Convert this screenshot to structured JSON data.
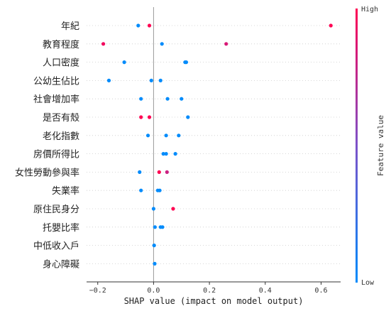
{
  "chart_data": {
    "type": "scatter",
    "xlabel": "SHAP value (impact on model output)",
    "xlim": [
      -0.24,
      0.67
    ],
    "xticks": [
      -0.2,
      0.0,
      0.2,
      0.4,
      0.6
    ],
    "xtick_labels": [
      "−0.2",
      "0.0",
      "0.2",
      "0.4",
      "0.6"
    ],
    "colorbar": {
      "high_label": "High",
      "low_label": "Low",
      "title": "Feature value",
      "high_color": "#ff0052",
      "low_color": "#008bfb"
    },
    "features": [
      {
        "name": "年紀",
        "points": [
          {
            "x": -0.055,
            "v": 0.0
          },
          {
            "x": -0.015,
            "v": 1.0
          },
          {
            "x": 0.635,
            "v": 1.0
          }
        ]
      },
      {
        "name": "教育程度",
        "points": [
          {
            "x": -0.18,
            "v": 0.95
          },
          {
            "x": 0.03,
            "v": 0.0
          },
          {
            "x": 0.26,
            "v": 0.85
          }
        ]
      },
      {
        "name": "人口密度",
        "points": [
          {
            "x": -0.105,
            "v": 0.0
          },
          {
            "x": 0.113,
            "v": 0.0
          },
          {
            "x": 0.117,
            "v": 0.0
          }
        ]
      },
      {
        "name": "公幼生佔比",
        "points": [
          {
            "x": -0.16,
            "v": 0.0
          },
          {
            "x": -0.008,
            "v": 0.0
          },
          {
            "x": 0.025,
            "v": 0.0
          }
        ]
      },
      {
        "name": "社會增加率",
        "points": [
          {
            "x": -0.045,
            "v": 0.0
          },
          {
            "x": 0.05,
            "v": 0.0
          },
          {
            "x": 0.1,
            "v": 0.0
          }
        ]
      },
      {
        "name": "是否有殼",
        "points": [
          {
            "x": -0.045,
            "v": 1.0
          },
          {
            "x": -0.015,
            "v": 1.0
          },
          {
            "x": 0.123,
            "v": 0.0
          }
        ]
      },
      {
        "name": "老化指數",
        "points": [
          {
            "x": -0.02,
            "v": 0.0
          },
          {
            "x": 0.045,
            "v": 0.0
          },
          {
            "x": 0.09,
            "v": 0.0
          }
        ]
      },
      {
        "name": "房價所得比",
        "points": [
          {
            "x": 0.035,
            "v": 0.0
          },
          {
            "x": 0.045,
            "v": 0.0
          },
          {
            "x": 0.078,
            "v": 0.0
          }
        ]
      },
      {
        "name": "女性勞動參與率",
        "points": [
          {
            "x": -0.05,
            "v": 0.0
          },
          {
            "x": 0.02,
            "v": 1.0
          },
          {
            "x": 0.048,
            "v": 0.8
          }
        ]
      },
      {
        "name": "失業率",
        "points": [
          {
            "x": -0.045,
            "v": 0.0
          },
          {
            "x": 0.015,
            "v": 0.0
          },
          {
            "x": 0.022,
            "v": 0.0
          }
        ]
      },
      {
        "name": "原住民身分",
        "points": [
          {
            "x": 0.0,
            "v": 0.0
          },
          {
            "x": 0.07,
            "v": 1.0
          }
        ]
      },
      {
        "name": "托嬰比率",
        "points": [
          {
            "x": 0.005,
            "v": 0.0
          },
          {
            "x": 0.025,
            "v": 0.0
          },
          {
            "x": 0.032,
            "v": 0.0
          }
        ]
      },
      {
        "name": "中低收入戶",
        "points": [
          {
            "x": 0.002,
            "v": 0.0
          }
        ]
      },
      {
        "name": "身心障礙",
        "points": [
          {
            "x": 0.004,
            "v": 0.0
          }
        ]
      }
    ]
  }
}
